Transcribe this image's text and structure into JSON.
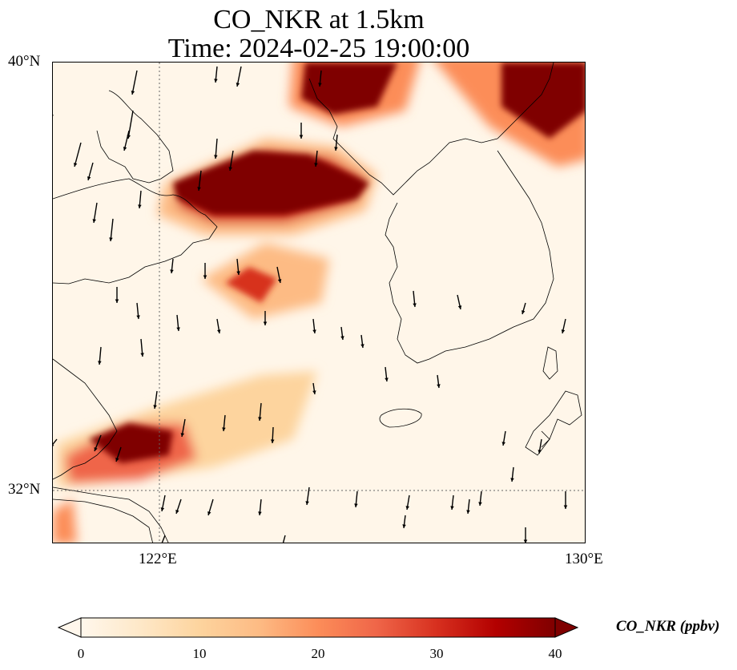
{
  "figure": {
    "title_line1": "CO_NKR at 1.5km",
    "title_line2": "Time: 2024-02-25 19:00:00"
  },
  "map": {
    "lat_labels": [
      "40°N",
      "32°N"
    ],
    "lon_labels": [
      "122°E",
      "130°E"
    ],
    "extent": {
      "lon": [
        120,
        130
      ],
      "lat": [
        31,
        40
      ]
    },
    "gridlines": {
      "lon": 122,
      "lat": 32
    }
  },
  "colorbar": {
    "label": "CO_NKR (ppbv)",
    "ticks": [
      "0",
      "10",
      "20",
      "30",
      "40"
    ],
    "min": 0,
    "max": 40,
    "extend": "both",
    "colormap": "OrRd",
    "colors": [
      "#fff7ec",
      "#fee8c8",
      "#fdd49e",
      "#fdbb84",
      "#fc8d59",
      "#ef6548",
      "#d7301f",
      "#b30000",
      "#7f0000"
    ]
  }
}
